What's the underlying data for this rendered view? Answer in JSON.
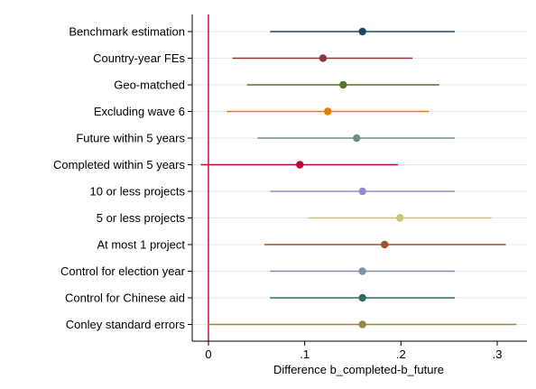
{
  "chart_data": {
    "type": "scatter",
    "subtype": "coefficient-plot-horizontal",
    "title": "",
    "xlabel": "Difference b_completed-b_future",
    "ylabel": "",
    "xlim": [
      -0.02,
      0.33
    ],
    "xticks": [
      0,
      0.1,
      0.2,
      0.3
    ],
    "xtick_labels": [
      "0",
      ".1",
      ".2",
      ".3"
    ],
    "reference_line": {
      "x": 0,
      "color": "#c8143c"
    },
    "grid": "horizontal",
    "legend": "none",
    "rows": [
      {
        "label": "Benchmark estimation",
        "estimate": 0.16,
        "ci_low": 0.064,
        "ci_high": 0.256,
        "color": "#1a476f"
      },
      {
        "label": "Country-year FEs",
        "estimate": 0.119,
        "ci_low": 0.025,
        "ci_high": 0.212,
        "color": "#90353b"
      },
      {
        "label": "Geo-matched",
        "estimate": 0.14,
        "ci_low": 0.04,
        "ci_high": 0.24,
        "color": "#55752f"
      },
      {
        "label": "Excluding wave 6",
        "estimate": 0.124,
        "ci_low": 0.019,
        "ci_high": 0.229,
        "color": "#e37e00"
      },
      {
        "label": "Future within 5 years",
        "estimate": 0.154,
        "ci_low": 0.051,
        "ci_high": 0.256,
        "color": "#6e8e84"
      },
      {
        "label": "Completed within 5 years",
        "estimate": 0.095,
        "ci_low": -0.008,
        "ci_high": 0.197,
        "color": "#c10534"
      },
      {
        "label": "10 or less projects",
        "estimate": 0.16,
        "ci_low": 0.064,
        "ci_high": 0.256,
        "color": "#938dd2"
      },
      {
        "label": "5 or less projects",
        "estimate": 0.199,
        "ci_low": 0.104,
        "ci_high": 0.294,
        "color": "#cac27e"
      },
      {
        "label": "At most 1 project",
        "estimate": 0.183,
        "ci_low": 0.058,
        "ci_high": 0.309,
        "color": "#a0522d"
      },
      {
        "label": "Control for election year",
        "estimate": 0.16,
        "ci_low": 0.064,
        "ci_high": 0.256,
        "color": "#7b92a8"
      },
      {
        "label": "Control for Chinese aid",
        "estimate": 0.16,
        "ci_low": 0.064,
        "ci_high": 0.256,
        "color": "#2d6d66"
      },
      {
        "label": "Conley standard errors",
        "estimate": 0.16,
        "ci_low": 0.0,
        "ci_high": 0.32,
        "color": "#9c8847"
      }
    ]
  }
}
